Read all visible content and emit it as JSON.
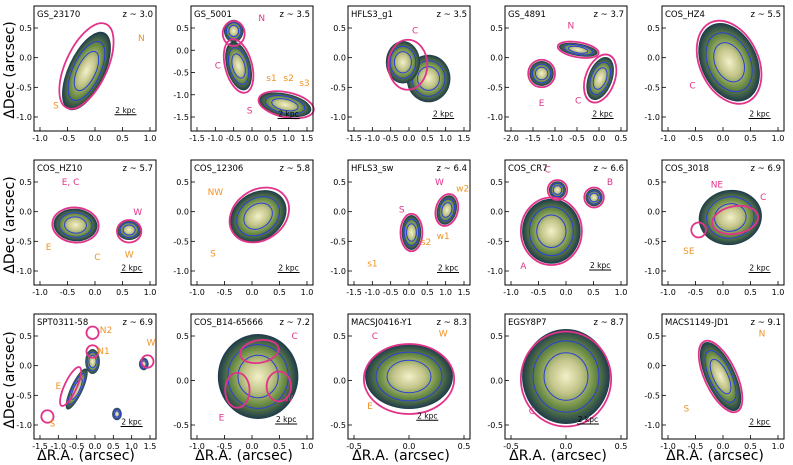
{
  "chart_data": {
    "type": "image-grid",
    "ylabel": "ΔDec (arcsec)",
    "xlabel": "ΔR.A. (arcsec)",
    "scale_label": "2 kpc",
    "colors": {
      "ellipse": "#e2338a",
      "annotation_pink": "#e2338a",
      "annotation_orange": "#ee9425",
      "contour": "#2b3fd6",
      "cmap_low": "#1d3a4a",
      "cmap_mid": "#5f8c3a",
      "cmap_high": "#f3f0c9"
    },
    "panels": [
      {
        "name": "GS_23170",
        "z": "z ~ 3.0",
        "xticks": [
          "-1.0",
          "-0.5",
          "0.0",
          "0.5",
          "1.0"
        ],
        "yticks": [
          "0.5",
          "0.0",
          "-0.5",
          "-1.0"
        ],
        "labels": [
          {
            "t": "N",
            "c": "orange"
          },
          {
            "t": "S",
            "c": "orange"
          }
        ]
      },
      {
        "name": "GS_5001",
        "z": "z ~ 3.5",
        "xticks": [
          "-1.5",
          "-1.0",
          "-0.5",
          "0.0",
          "0.5",
          "1.0",
          "1.5"
        ],
        "yticks": [
          "0.5",
          "0.0",
          "-0.5",
          "-1.0",
          "-1.5"
        ],
        "labels": [
          {
            "t": "N",
            "c": "pink"
          },
          {
            "t": "C",
            "c": "pink"
          },
          {
            "t": "s1",
            "c": "orange"
          },
          {
            "t": "s2",
            "c": "orange"
          },
          {
            "t": "s3",
            "c": "orange"
          },
          {
            "t": "S",
            "c": "pink"
          }
        ]
      },
      {
        "name": "HFLS3_g1",
        "z": "z ~ 3.5",
        "xticks": [
          "-1.5",
          "-1.0",
          "-0.5",
          "0.0",
          "0.5",
          "1.0",
          "1.5"
        ],
        "yticks": [
          "0.5",
          "0.0",
          "-0.5",
          "-1.0"
        ],
        "labels": [
          {
            "t": "C",
            "c": "pink"
          }
        ]
      },
      {
        "name": "GS_4891",
        "z": "z ~ 3.7",
        "xticks": [
          "-2.0",
          "-1.5",
          "-1.0",
          "-0.5",
          "0.0",
          "0.5"
        ],
        "yticks": [
          "0.5",
          "0.0",
          "-0.5",
          "-1.0"
        ],
        "labels": [
          {
            "t": "N",
            "c": "pink"
          },
          {
            "t": "E",
            "c": "pink"
          },
          {
            "t": "C",
            "c": "pink"
          }
        ]
      },
      {
        "name": "COS_HZ4",
        "z": "z ~ 5.5",
        "xticks": [
          "-1.0",
          "-0.5",
          "0.0",
          "0.5",
          "1.0"
        ],
        "yticks": [
          "0.5",
          "0.0",
          "-0.5",
          "-1.0"
        ],
        "labels": [
          {
            "t": "C",
            "c": "pink"
          }
        ]
      },
      {
        "name": "COS_HZ10",
        "z": "z ~ 5.7",
        "xticks": [
          "-1.0",
          "-0.5",
          "0.0",
          "0.5",
          "1.0"
        ],
        "yticks": [
          "0.5",
          "0.0",
          "-0.5",
          "-1.0"
        ],
        "labels": [
          {
            "t": "E, C",
            "c": "pink"
          },
          {
            "t": "W",
            "c": "pink"
          },
          {
            "t": "E",
            "c": "orange"
          },
          {
            "t": "C",
            "c": "orange"
          },
          {
            "t": "W",
            "c": "orange"
          }
        ]
      },
      {
        "name": "COS_12306",
        "z": "z ~ 5.8",
        "xticks": [
          "-1.0",
          "-0.5",
          "0.0",
          "0.5",
          "1.0"
        ],
        "yticks": [
          "0.5",
          "0.0",
          "-0.5",
          "-1.0"
        ],
        "labels": [
          {
            "t": "NW",
            "c": "orange"
          },
          {
            "t": "S",
            "c": "orange"
          }
        ]
      },
      {
        "name": "HFLS3_sw",
        "z": "z ~ 6.4",
        "xticks": [
          "-1.5",
          "-1.0",
          "-0.5",
          "0.0",
          "0.5",
          "1.0",
          "1.5"
        ],
        "yticks": [
          "0.5",
          "0.0",
          "-0.5",
          "-1.0"
        ],
        "labels": [
          {
            "t": "S",
            "c": "pink"
          },
          {
            "t": "W",
            "c": "pink"
          },
          {
            "t": "w2",
            "c": "orange"
          },
          {
            "t": "w1",
            "c": "orange"
          },
          {
            "t": "s2",
            "c": "orange"
          },
          {
            "t": "s1",
            "c": "orange"
          }
        ]
      },
      {
        "name": "COS_CR7",
        "z": "z ~ 6.6",
        "xticks": [
          "-1.0",
          "-0.5",
          "0.0",
          "0.5",
          "1.0"
        ],
        "yticks": [
          "0.5",
          "0.0",
          "-0.5",
          "-1.0"
        ],
        "labels": [
          {
            "t": "C",
            "c": "pink"
          },
          {
            "t": "B",
            "c": "pink"
          },
          {
            "t": "A",
            "c": "pink"
          }
        ]
      },
      {
        "name": "COS_3018",
        "z": "z ~ 6.9",
        "xticks": [
          "-1.0",
          "-0.5",
          "0.0",
          "0.5",
          "1.0"
        ],
        "yticks": [
          "0.5",
          "0.0",
          "-0.5",
          "-1.0"
        ],
        "labels": [
          {
            "t": "NE",
            "c": "pink"
          },
          {
            "t": "C",
            "c": "pink"
          },
          {
            "t": "SE",
            "c": "orange"
          }
        ]
      },
      {
        "name": "SPT0311-58",
        "z": "z ~ 6.9",
        "xticks": [
          "-1.5",
          "-1.0",
          "-0.5",
          "0.0",
          "0.5",
          "1.0",
          "1.5"
        ],
        "yticks": [
          "0.5",
          "0.0",
          "-0.5",
          "-1.0"
        ],
        "labels": [
          {
            "t": "N2",
            "c": "orange"
          },
          {
            "t": "N1",
            "c": "orange"
          },
          {
            "t": "W",
            "c": "orange"
          },
          {
            "t": "E",
            "c": "orange"
          },
          {
            "t": "S",
            "c": "orange"
          }
        ]
      },
      {
        "name": "COS_B14-65666",
        "z": "z ~ 7.2",
        "xticks": [
          "-1.0",
          "-0.5",
          "0.0",
          "0.5",
          "1.0"
        ],
        "yticks": [
          "0.5",
          "0.0",
          "-0.5"
        ],
        "labels": [
          {
            "t": "C",
            "c": "pink"
          },
          {
            "t": "W",
            "c": "pink"
          },
          {
            "t": "E",
            "c": "pink"
          }
        ]
      },
      {
        "name": "MACSJ0416-Y1",
        "z": "z ~ 8.3",
        "xticks": [
          "-0.5",
          "0.0",
          "0.5"
        ],
        "yticks": [
          "0.5",
          "0.0",
          "-0.5"
        ],
        "labels": [
          {
            "t": "C",
            "c": "pink"
          },
          {
            "t": "W",
            "c": "orange"
          },
          {
            "t": "E",
            "c": "orange"
          }
        ]
      },
      {
        "name": "EGSY8P7",
        "z": "z ~ 8.7",
        "xticks": [
          "-0.5",
          "0.0",
          "0.5"
        ],
        "yticks": [
          "0.5",
          "0.0",
          "-0.5"
        ],
        "labels": [
          {
            "t": "C",
            "c": "pink"
          }
        ]
      },
      {
        "name": "MACS1149-JD1",
        "z": "z ~ 9.1",
        "xticks": [
          "-1.0",
          "-0.5",
          "0.0",
          "0.5",
          "1.0"
        ],
        "yticks": [
          "0.5",
          "0.0",
          "-0.5",
          "-1.0"
        ],
        "labels": [
          {
            "t": "N",
            "c": "orange"
          },
          {
            "t": "S",
            "c": "orange"
          }
        ]
      }
    ]
  }
}
